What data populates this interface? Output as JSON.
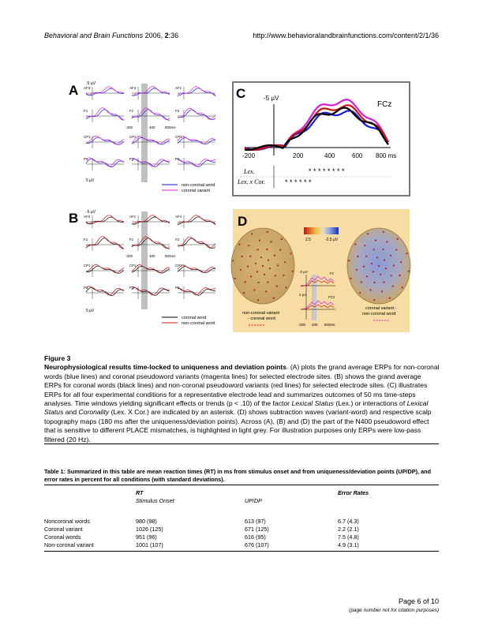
{
  "header": {
    "journal": "Behavioral and Brain Functions",
    "year_vol": " 2006, ",
    "vol_bold": "2",
    "pages": ":36",
    "url": "http://www.behavioralandbrainfunctions.com/content/2/1/36"
  },
  "figure": {
    "panel_a": {
      "letter": "A",
      "electrodes": [
        "AF3",
        "AF4",
        "AFz",
        "F1",
        "Fz",
        "F2",
        "CP1",
        "CPz",
        "CP2",
        "P1",
        "Pz",
        "P2"
      ],
      "scale_top": "-5 µV",
      "scale_bottom": "5 µV",
      "axis_ticks": [
        "-200",
        "400",
        "800ms"
      ],
      "legend": [
        "non-coronal word",
        "coronal variant"
      ],
      "colors": [
        "#1a1ad4",
        "#d81fd8"
      ]
    },
    "panel_b": {
      "letter": "B",
      "electrodes": [
        "AF3",
        "AFz",
        "AF4",
        "F1",
        "Fz",
        "F2",
        "CP1",
        "CPz",
        "CP2",
        "P1",
        "Pz",
        "P2"
      ],
      "scale_top": "-5 µV",
      "scale_bottom": "5 µV",
      "axis_ticks": [
        "-200",
        "400",
        "800ms"
      ],
      "legend": [
        "coronal word",
        "non-coronal word"
      ],
      "colors": [
        "#000000",
        "#c81414"
      ]
    },
    "panel_c": {
      "letter": "C",
      "electrode": "FCz",
      "scale": "-5 µV",
      "x_ticks": [
        "-200",
        "200",
        "400",
        "600",
        "800 ms"
      ],
      "row1_label": "Lex.",
      "row1_marks": "* * * * * * *   *",
      "row2_label": "Lex. x Cor.",
      "row2_marks": "* * *     *         * *"
    },
    "panel_d": {
      "letter": "D",
      "scale_left": "2.5",
      "scale_right": "-2.5 µV",
      "left_map_label": "non-coronal variant\n- coronal word",
      "right_map_label": "coronal variant -\nnon-coronal word",
      "inset_scale_top": "-2 µV",
      "inset_scale_bottom": "2 µV",
      "inset_electrodes": [
        "Fz",
        "FCz"
      ],
      "inset_ticks": [
        "-200",
        "400",
        "800ms"
      ]
    }
  },
  "caption": {
    "label": "Figure 3",
    "title": "Neurophysiological results time-locked to uniqueness and deviation points",
    "text_1": ". (A) plots the grand average ERPs for non-coronal words (blue lines) and coronal pseudoword variants (magenta lines) for selected electrode sites. (B) shows the grand average ERPs for coronal words (black lines) and non-coronal pseudoword variants (red lines) for selected electrode sites. (C) illustrates ERPs for all four experimental conditions for a representative electrode lead and summarizes outcomes of 50 ms time-steps analyses. Time windows yielding significant effects or trends (p < .10) of the factor ",
    "italic_1": "Lexical Status",
    "text_2": " (Lex.) or interactions of ",
    "italic_2": "Lexical Status",
    "text_3": " and ",
    "italic_3": "Coronality",
    "text_4": " (Lex. X Cor.) are indicated by an asterisk. (D) shows subtraction waves (variant-word) and respective scalp topography maps (180 ms after the uniqueness/deviation points). Across (A), (B) and (D) the part of the N400 pseudoword effect that is sensitive to different PLACE mismatches, is highlighted in light grey. For illustration purposes only ERPs were low-pass filtered (20 Hz)."
  },
  "table": {
    "caption": "Table 1: Summarized in this table are mean reaction times (RT) in ms from stimulus onset and from uniqueness/deviation points (UP/DP), and error rates in percent for all conditions (with standard deviations).",
    "head_rt": "RT",
    "head_err": "Error Rates",
    "sub_onset": "Stimulus Onset",
    "sub_updp": "UP/DP",
    "rows": [
      {
        "cond": "Noncoronal words",
        "onset": "980 (98)",
        "updp": "613 (97)",
        "err": "6.7 (4.3)"
      },
      {
        "cond": "Coronal variant",
        "onset": "1026 (125)",
        "updp": "671 (125)",
        "err": "2.2 (2.1)"
      },
      {
        "cond": "Coronal words",
        "onset": "951 (96)",
        "updp": "616 (95)",
        "err": "7.5 (4.8)"
      },
      {
        "cond": "Non-coronal variant",
        "onset": "1001 (107)",
        "updp": "676 (107)",
        "err": "4.9 (3.1)"
      }
    ]
  },
  "footer": {
    "page": "Page 6 of 10",
    "note": "(page number not for citation purposes)"
  }
}
